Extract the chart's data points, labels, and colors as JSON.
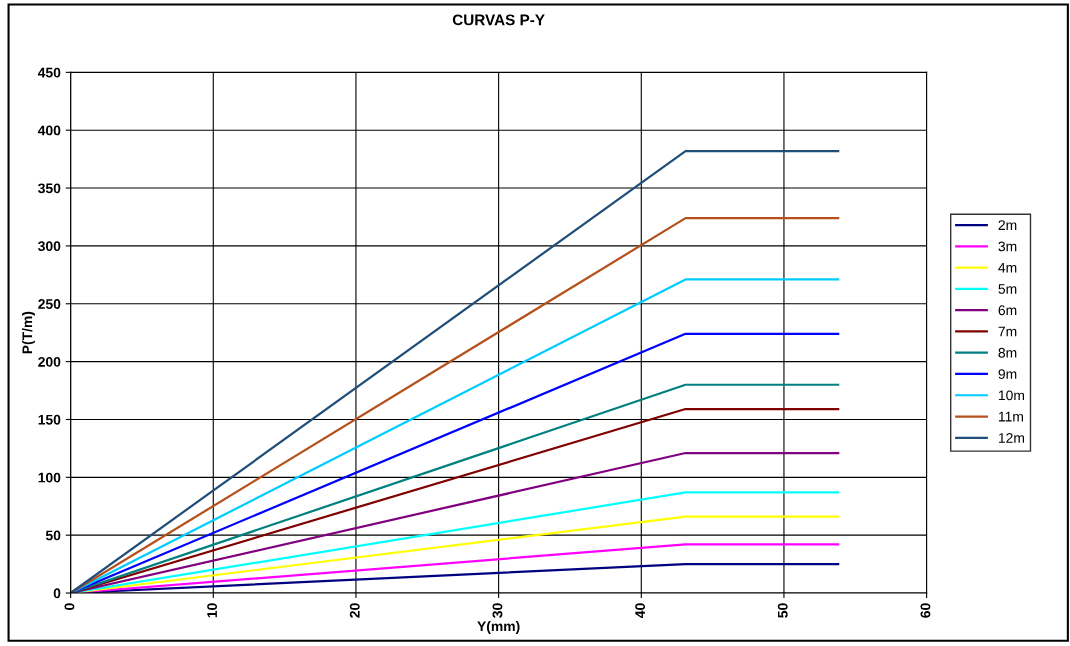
{
  "chart_data": {
    "type": "line",
    "title": "CURVAS P-Y",
    "xlabel": "Y(mm)",
    "ylabel": "P(T/m)",
    "xlim": [
      0,
      60
    ],
    "xticks": [
      0,
      10,
      20,
      30,
      40,
      50,
      60
    ],
    "ylim": [
      0,
      450
    ],
    "yticks": [
      0,
      50,
      100,
      150,
      200,
      250,
      300,
      350,
      400,
      450
    ],
    "grid": true,
    "legend": "right",
    "marker": "none",
    "line_style": "solid",
    "series": [
      {
        "name": "2m",
        "color": "#000080",
        "x": [
          0,
          43.1,
          53.8
        ],
        "values": [
          0,
          25,
          25
        ]
      },
      {
        "name": "3m",
        "color": "#ff00ff",
        "x": [
          0,
          43.1,
          53.8
        ],
        "values": [
          0,
          42,
          42
        ]
      },
      {
        "name": "4m",
        "color": "#ffff00",
        "x": [
          0,
          43.1,
          53.8
        ],
        "values": [
          0,
          66,
          66
        ]
      },
      {
        "name": "5m",
        "color": "#00ffff",
        "x": [
          0,
          43.1,
          53.8
        ],
        "values": [
          0,
          87,
          87
        ]
      },
      {
        "name": "6m",
        "color": "#800080",
        "x": [
          0,
          43.1,
          53.8
        ],
        "values": [
          0,
          121,
          121
        ]
      },
      {
        "name": "7m",
        "color": "#800000",
        "x": [
          0,
          43.1,
          53.8
        ],
        "values": [
          0,
          159,
          159
        ]
      },
      {
        "name": "8m",
        "color": "#008080",
        "x": [
          0,
          43.1,
          53.8
        ],
        "values": [
          0,
          180,
          180
        ]
      },
      {
        "name": "9m",
        "color": "#0000ff",
        "x": [
          0,
          43.1,
          53.8
        ],
        "values": [
          0,
          224,
          224
        ]
      },
      {
        "name": "10m",
        "color": "#00ccff",
        "x": [
          0,
          43.1,
          53.8
        ],
        "values": [
          0,
          271,
          271
        ]
      },
      {
        "name": "11m",
        "color": "#b5501a",
        "x": [
          0,
          43.1,
          53.8
        ],
        "values": [
          0,
          324,
          324
        ]
      },
      {
        "name": "12m",
        "color": "#1f4e79",
        "x": [
          0,
          43.1,
          53.8
        ],
        "values": [
          0,
          382,
          382
        ]
      }
    ]
  }
}
